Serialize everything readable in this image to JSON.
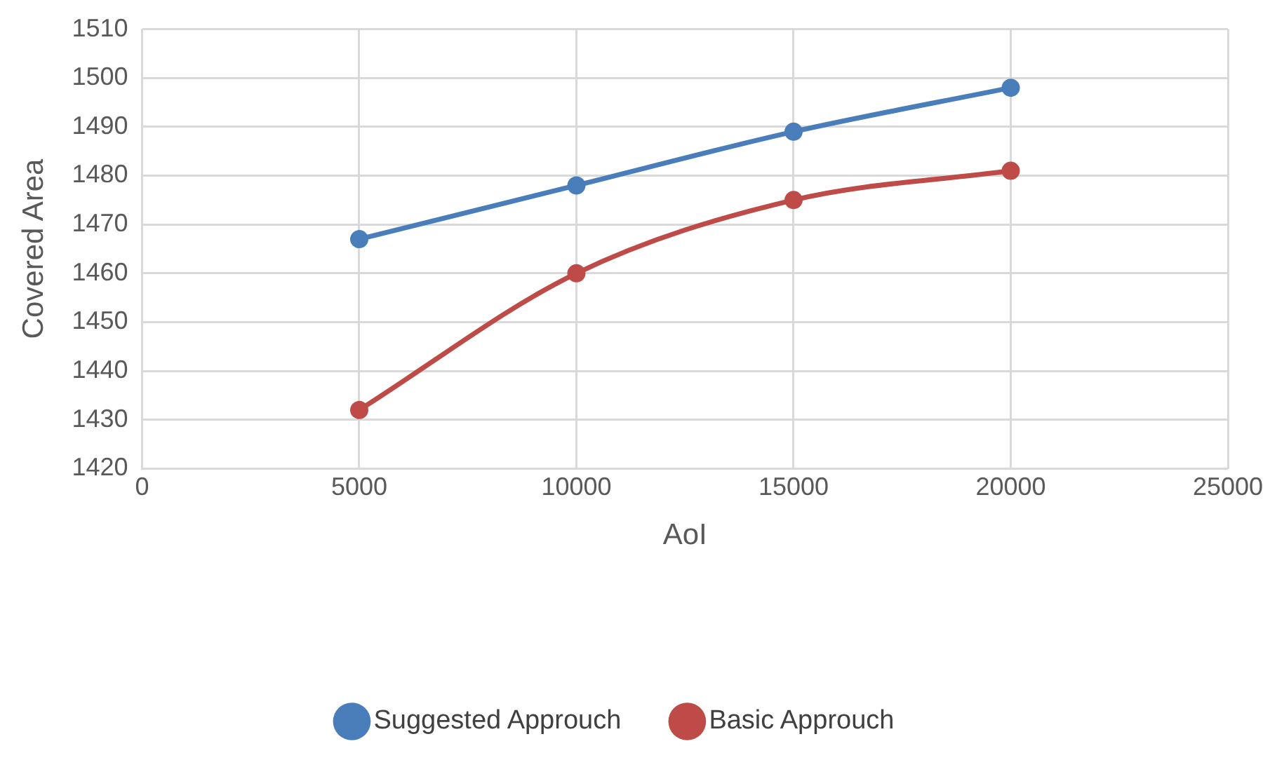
{
  "chart_data": {
    "type": "line",
    "xlabel": "AoI",
    "ylabel": "Covered Area",
    "x": [
      5000,
      10000,
      15000,
      20000
    ],
    "series": [
      {
        "name": "Suggested Approuch",
        "color": "#4a7ebb",
        "values": [
          1467,
          1478,
          1489,
          1498
        ]
      },
      {
        "name": "Basic Approuch",
        "color": "#be4b48",
        "values": [
          1432,
          1460,
          1475,
          1481
        ]
      }
    ],
    "xlim": [
      0,
      25000
    ],
    "xticks": [
      0,
      5000,
      10000,
      15000,
      20000,
      25000
    ],
    "ylim": [
      1420,
      1510
    ],
    "yticks": [
      1420,
      1430,
      1440,
      1450,
      1460,
      1470,
      1480,
      1490,
      1500,
      1510
    ],
    "grid": true,
    "legend": "bottom",
    "marker": "circle",
    "line_style": "solid"
  }
}
